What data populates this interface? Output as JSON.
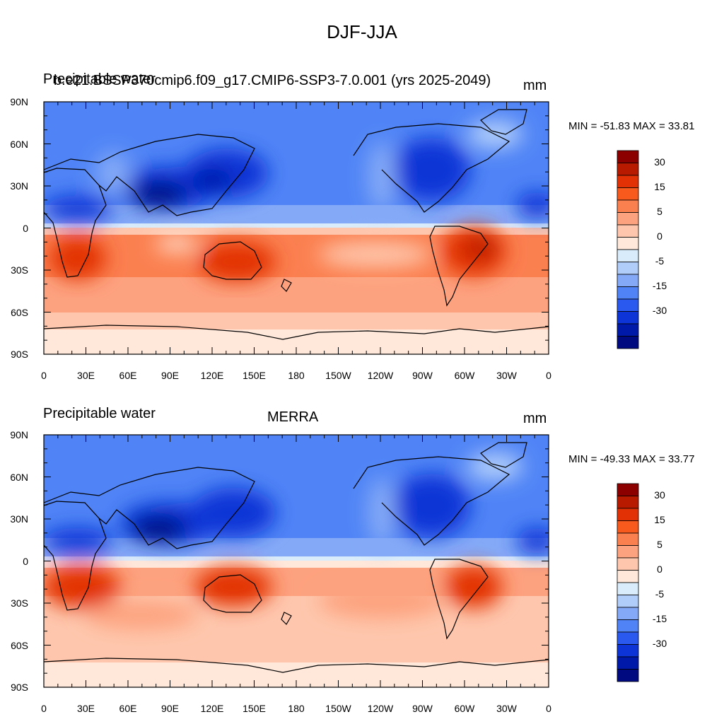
{
  "figure": {
    "title": "DJF-JJA"
  },
  "panels": [
    {
      "left_label": "Precipitable water",
      "center_label": "b.e21.BSSP370cmip6.f09_g17.CMIP6-SSP3-7.0.001 (yrs 2025-2049)",
      "right_label": "mm",
      "minmax": "MIN = -51.83 MAX =  33.81"
    },
    {
      "left_label": "Precipitable water",
      "center_label": "MERRA",
      "right_label": "mm",
      "minmax": "MIN = -49.33 MAX =  33.77"
    }
  ],
  "map": {
    "lat_ticks": [
      "90N",
      "60N",
      "30N",
      "0",
      "30S",
      "60S",
      "90S"
    ],
    "lon_ticks": [
      "0",
      "30E",
      "60E",
      "90E",
      "120E",
      "150E",
      "180",
      "150W",
      "120W",
      "90W",
      "60W",
      "30W",
      "0"
    ]
  },
  "colorbar": {
    "labels": [
      "30",
      "15",
      "5",
      "0",
      "-5",
      "-15",
      "-30"
    ],
    "colors": [
      "#8c0000",
      "#b81a00",
      "#e23205",
      "#f85a1e",
      "#fb8050",
      "#fda27e",
      "#fec7ad",
      "#ffe8da",
      "#d9ecfb",
      "#b0cdfa",
      "#84aaf7",
      "#5084f6",
      "#2a59ef",
      "#0c34d6",
      "#0019a8",
      "#000a80"
    ]
  }
}
